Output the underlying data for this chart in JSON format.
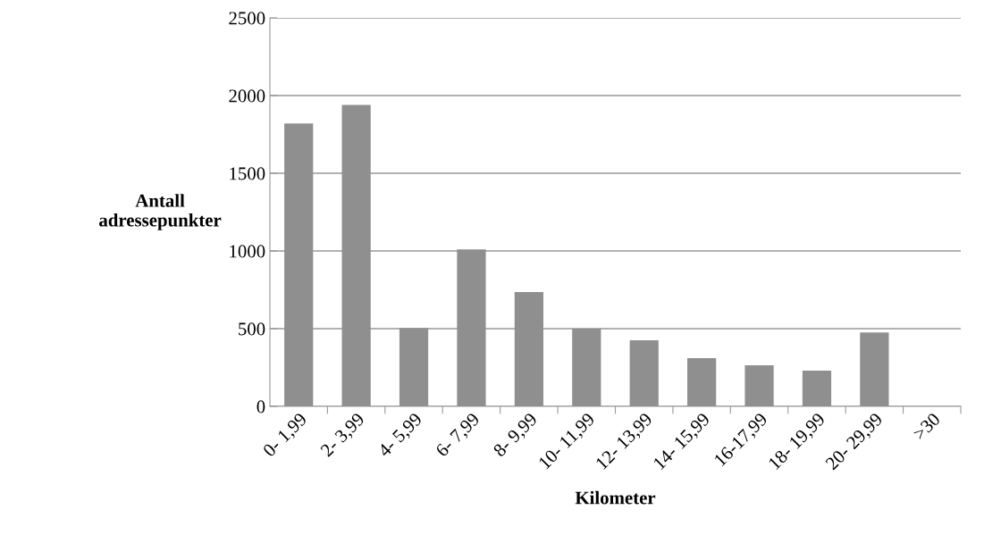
{
  "chart_data": {
    "type": "bar",
    "categories": [
      "0- 1,99",
      "2- 3,99",
      "4- 5,99",
      "6- 7,99",
      "8- 9,99",
      "10- 11,99",
      "12- 13,99",
      "14- 15,99",
      "16-17,99",
      "18- 19,99",
      "20- 29,99",
      ">30"
    ],
    "values": [
      1820,
      1940,
      505,
      1010,
      735,
      500,
      425,
      310,
      265,
      230,
      475,
      0
    ],
    "color": "#8f8f8f",
    "xlabel": "Kilometer",
    "ylabel": "Antall\nadressepunkter",
    "ylim": [
      0,
      2500
    ],
    "yticks": [
      0,
      500,
      1000,
      1500,
      2000,
      2500
    ],
    "grid": "y"
  }
}
